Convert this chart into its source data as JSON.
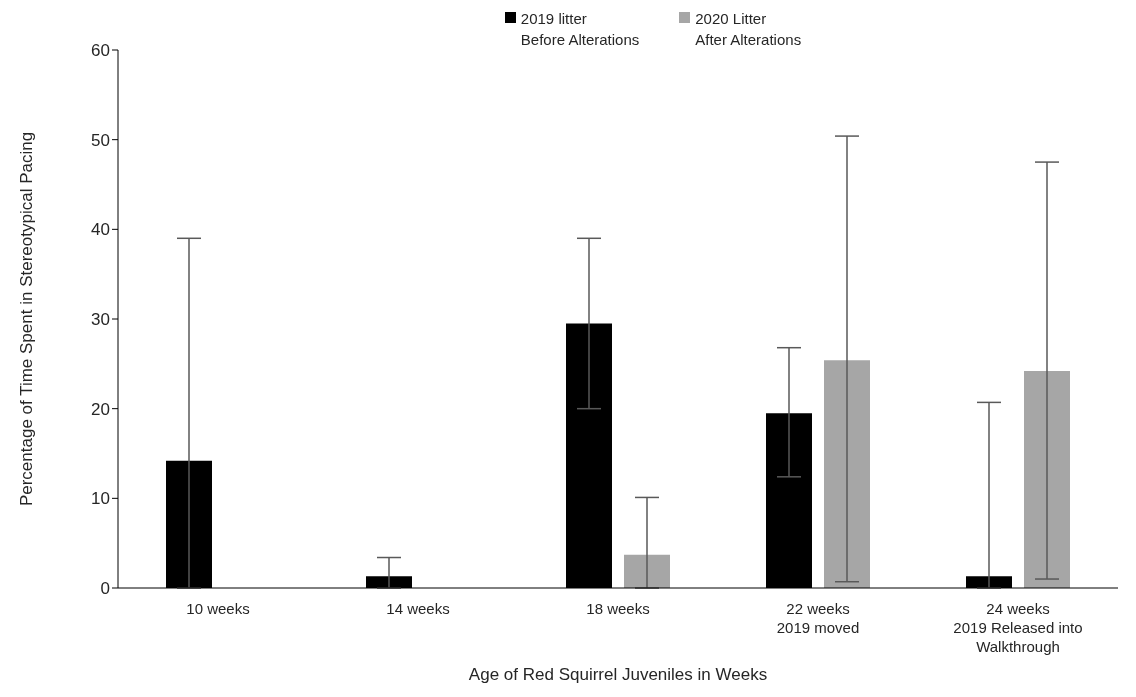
{
  "chart_data": {
    "type": "bar",
    "xlabel": "Age of Red Squirrel Juveniles in Weeks",
    "ylabel": "Percentage of Time Spent in Stereotypical Pacing",
    "categories": [
      "10 weeks",
      "14 weeks",
      "18 weeks",
      "22 weeks\n2019 moved",
      "24 weeks\n2019 Released into\nWalkthrough"
    ],
    "series": [
      {
        "name": "2019 litter\nBefore Alterations",
        "color": "#000000",
        "values": [
          14.2,
          1.3,
          29.5,
          19.5,
          1.3
        ],
        "errors": [
          [
            0,
            39.0
          ],
          [
            0,
            3.4
          ],
          [
            20.0,
            39.0
          ],
          [
            12.4,
            26.8
          ],
          [
            0,
            20.7
          ]
        ]
      },
      {
        "name": "2020 Litter\nAfter Alterations",
        "color": "#a6a6a6",
        "values": [
          0,
          0,
          3.7,
          25.4,
          24.2
        ],
        "errors": [
          null,
          null,
          [
            0,
            10.1
          ],
          [
            0.7,
            50.4
          ],
          [
            1.0,
            47.5
          ]
        ]
      }
    ],
    "ylim": [
      0,
      60
    ],
    "yticks": [
      0,
      10,
      20,
      30,
      40,
      50,
      60
    ],
    "grid": false,
    "legend": "top"
  }
}
